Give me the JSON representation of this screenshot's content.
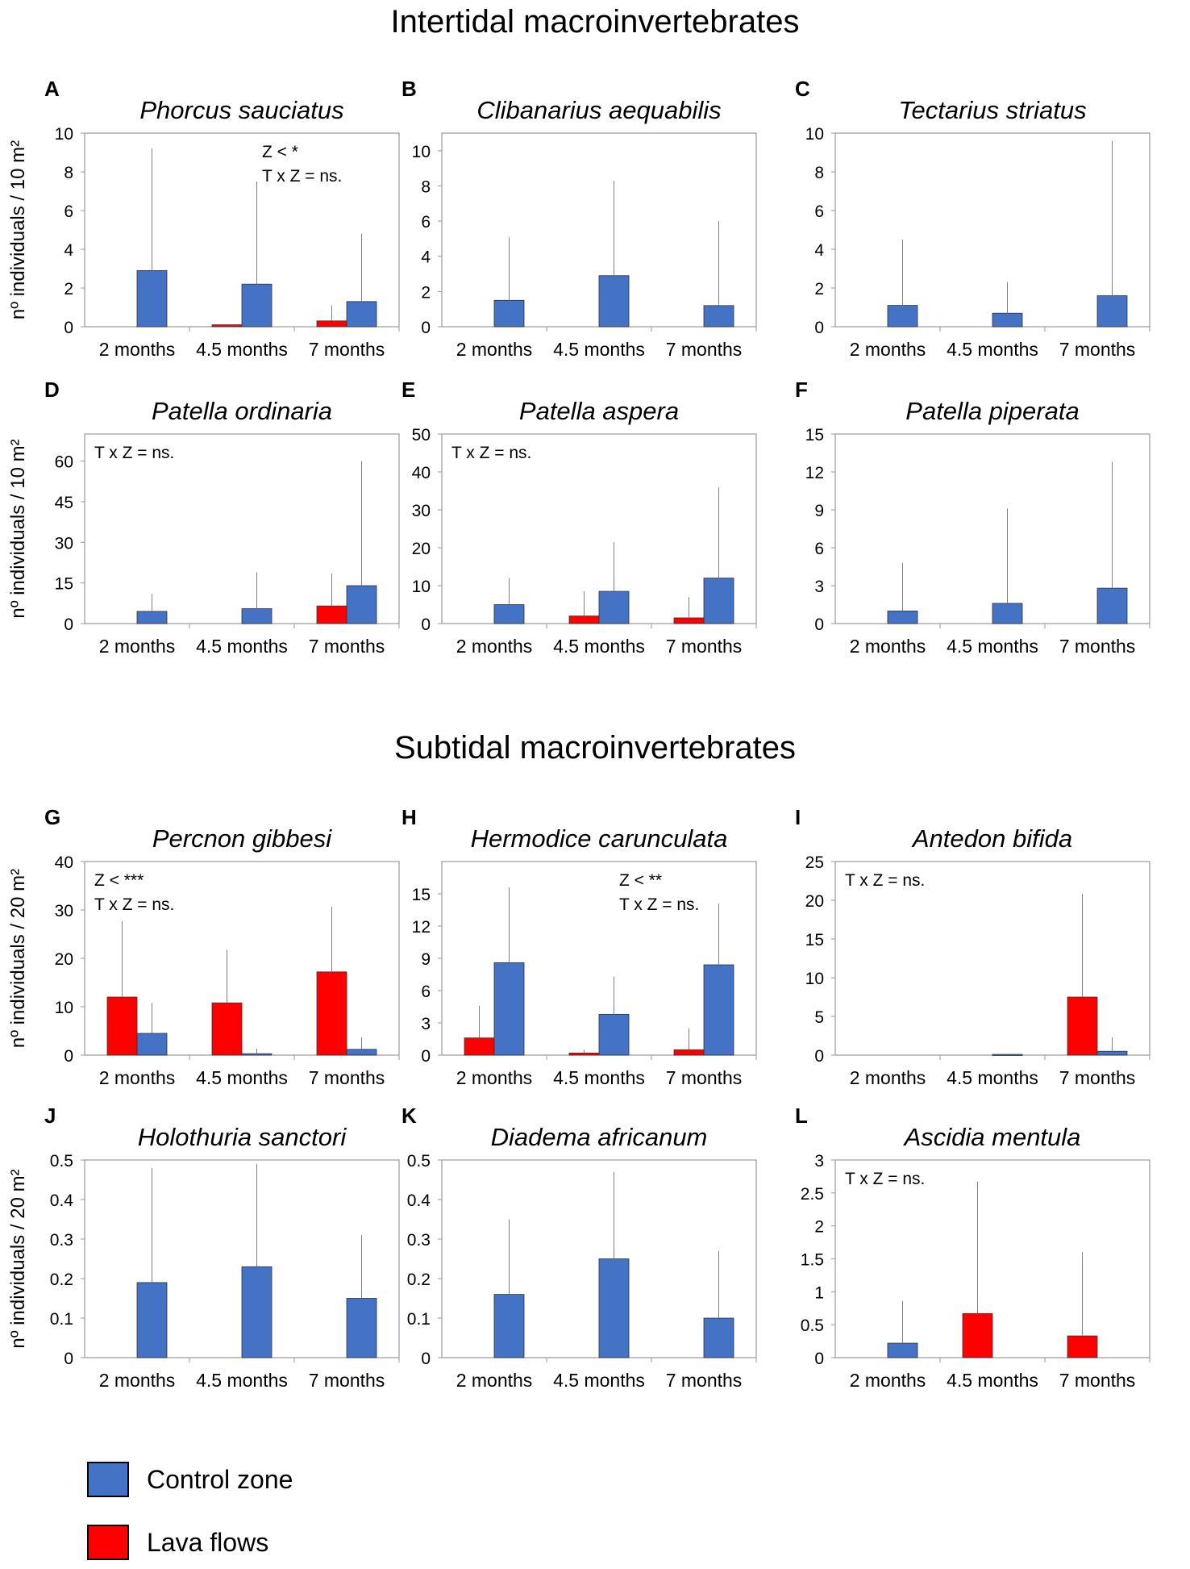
{
  "colors": {
    "control": "#4472C4",
    "lava": "#FF0000",
    "axis": "#999999",
    "error": "#808080",
    "text": "#000000"
  },
  "section_titles": {
    "intertidal": "Intertidal macroinvertebrates",
    "subtidal": "Subtidal macroinvertebrates"
  },
  "legend": [
    {
      "label": "Control zone",
      "color": "#4472C4"
    },
    {
      "label": "Lava flows",
      "color": "#FF0000"
    }
  ],
  "chart_data": [
    {
      "id": "A",
      "type": "bar",
      "title": "Phorcus sauciatus",
      "ylabel": "nº individuals / 10 m²",
      "ylim": [
        0,
        10
      ],
      "yticks": [
        "0",
        "2",
        "4",
        "6",
        "8",
        "10"
      ],
      "categories": [
        "2 months",
        "4.5 months",
        "7 months"
      ],
      "annotations": [
        "Z < *",
        "T x Z = ns."
      ],
      "series": [
        {
          "name": "Lava flows",
          "values": [
            0,
            0.1,
            0.3
          ],
          "error": [
            0,
            0,
            0.8
          ]
        },
        {
          "name": "Control zone",
          "values": [
            2.9,
            2.2,
            1.3
          ],
          "error": [
            6.3,
            5.3,
            3.5
          ]
        }
      ]
    },
    {
      "id": "B",
      "type": "bar",
      "title": "Clibanarius aequabilis",
      "ylabel": "",
      "ylim": [
        0,
        11
      ],
      "yticks": [
        "0",
        "2",
        "4",
        "6",
        "8",
        "10"
      ],
      "categories": [
        "2 months",
        "4.5 months",
        "7 months"
      ],
      "annotations": [],
      "series": [
        {
          "name": "Lava flows",
          "values": [
            0,
            0,
            0
          ],
          "error": [
            0,
            0,
            0
          ]
        },
        {
          "name": "Control zone",
          "values": [
            1.5,
            2.9,
            1.2
          ],
          "error": [
            3.6,
            5.4,
            4.8
          ]
        }
      ]
    },
    {
      "id": "C",
      "type": "bar",
      "title": "Tectarius striatus",
      "ylabel": "",
      "ylim": [
        0,
        10
      ],
      "yticks": [
        "0",
        "2",
        "4",
        "6",
        "8",
        "10"
      ],
      "categories": [
        "2 months",
        "4.5 months",
        "7 months"
      ],
      "annotations": [],
      "series": [
        {
          "name": "Lava flows",
          "values": [
            0,
            0,
            0
          ],
          "error": [
            0,
            0,
            0
          ]
        },
        {
          "name": "Control zone",
          "values": [
            1.1,
            0.7,
            1.6
          ],
          "error": [
            3.4,
            1.6,
            8.0
          ]
        }
      ]
    },
    {
      "id": "D",
      "type": "bar",
      "title": "Patella ordinaria",
      "ylabel": "nº individuals / 10 m²",
      "ylim": [
        0,
        70
      ],
      "yticks": [
        "0",
        "15",
        "30",
        "45",
        "60"
      ],
      "categories": [
        "2 months",
        "4.5 months",
        "7 months"
      ],
      "annotations": [
        "T x Z = ns."
      ],
      "series": [
        {
          "name": "Lava flows",
          "values": [
            0,
            0,
            6.5
          ],
          "error": [
            0,
            0,
            12
          ]
        },
        {
          "name": "Control zone",
          "values": [
            4.5,
            5.5,
            14
          ],
          "error": [
            6.5,
            13.5,
            46
          ]
        }
      ]
    },
    {
      "id": "E",
      "type": "bar",
      "title": "Patella aspera",
      "ylabel": "",
      "ylim": [
        0,
        50
      ],
      "yticks": [
        "0",
        "10",
        "20",
        "30",
        "40",
        "50"
      ],
      "categories": [
        "2 months",
        "4.5 months",
        "7 months"
      ],
      "annotations": [
        "T x Z = ns."
      ],
      "series": [
        {
          "name": "Lava flows",
          "values": [
            0,
            2,
            1.5
          ],
          "error": [
            0,
            6.5,
            5.5
          ]
        },
        {
          "name": "Control zone",
          "values": [
            5,
            8.5,
            12
          ],
          "error": [
            7,
            13,
            24
          ]
        }
      ]
    },
    {
      "id": "F",
      "type": "bar",
      "title": "Patella piperata",
      "ylabel": "",
      "ylim": [
        0,
        15
      ],
      "yticks": [
        "0",
        "3",
        "6",
        "9",
        "12",
        "15"
      ],
      "categories": [
        "2 months",
        "4.5 months",
        "7 months"
      ],
      "annotations": [],
      "series": [
        {
          "name": "Lava flows",
          "values": [
            0,
            0,
            0
          ],
          "error": [
            0,
            0,
            0
          ]
        },
        {
          "name": "Control zone",
          "values": [
            1,
            1.6,
            2.8
          ],
          "error": [
            3.8,
            7.5,
            10
          ]
        }
      ]
    },
    {
      "id": "G",
      "type": "bar",
      "title": "Percnon gibbesi",
      "ylabel": "nº individuals / 20 m²",
      "ylim": [
        0,
        40
      ],
      "yticks": [
        "0",
        "10",
        "20",
        "30",
        "40"
      ],
      "categories": [
        "2 months",
        "4.5 months",
        "7 months"
      ],
      "annotations": [
        "Z < ***",
        "T x Z = ns."
      ],
      "series": [
        {
          "name": "Lava flows",
          "values": [
            12,
            10.8,
            17.2
          ],
          "error": [
            15.7,
            11,
            13.5
          ]
        },
        {
          "name": "Control zone",
          "values": [
            4.5,
            0.3,
            1.2
          ],
          "error": [
            6.3,
            1,
            2.5
          ]
        }
      ]
    },
    {
      "id": "H",
      "type": "bar",
      "title": "Hermodice carunculata",
      "ylabel": "",
      "ylim": [
        0,
        18
      ],
      "yticks": [
        "0",
        "3",
        "6",
        "9",
        "12",
        "15"
      ],
      "categories": [
        "2 months",
        "4.5 months",
        "7 months"
      ],
      "annotations": [
        "Z < **",
        "T x Z = ns."
      ],
      "series": [
        {
          "name": "Lava flows",
          "values": [
            1.6,
            0.2,
            0.5
          ],
          "error": [
            3,
            0.3,
            2
          ]
        },
        {
          "name": "Control zone",
          "values": [
            8.6,
            3.8,
            8.4
          ],
          "error": [
            7,
            3.5,
            5.7
          ]
        }
      ]
    },
    {
      "id": "I",
      "type": "bar",
      "title": "Antedon bifida",
      "ylabel": "",
      "ylim": [
        0,
        25
      ],
      "yticks": [
        "0",
        "5",
        "10",
        "15",
        "20",
        "25"
      ],
      "categories": [
        "2 months",
        "4.5 months",
        "7 months"
      ],
      "annotations": [
        "T x Z = ns."
      ],
      "series": [
        {
          "name": "Lava flows",
          "values": [
            0,
            0,
            7.5
          ],
          "error": [
            0,
            0,
            13.3
          ]
        },
        {
          "name": "Control zone",
          "values": [
            0,
            0.1,
            0.5
          ],
          "error": [
            0,
            0,
            1.8
          ]
        }
      ]
    },
    {
      "id": "J",
      "type": "bar",
      "title": "Holothuria sanctori",
      "ylabel": "nº individuals / 20 m²",
      "ylim": [
        0,
        0.5
      ],
      "yticks": [
        "0",
        "0.1",
        "0.2",
        "0.3",
        "0.4",
        "0.5"
      ],
      "categories": [
        "2 months",
        "4.5 months",
        "7 months"
      ],
      "annotations": [],
      "series": [
        {
          "name": "Lava flows",
          "values": [
            0,
            0,
            0
          ],
          "error": [
            0,
            0,
            0
          ]
        },
        {
          "name": "Control zone",
          "values": [
            0.19,
            0.23,
            0.15
          ],
          "error": [
            0.29,
            0.26,
            0.16
          ]
        }
      ]
    },
    {
      "id": "K",
      "type": "bar",
      "title": "Diadema africanum",
      "ylabel": "",
      "ylim": [
        0,
        0.5
      ],
      "yticks": [
        "0",
        "0.1",
        "0.2",
        "0.3",
        "0.4",
        "0.5"
      ],
      "categories": [
        "2 months",
        "4.5 months",
        "7 months"
      ],
      "annotations": [],
      "series": [
        {
          "name": "Lava flows",
          "values": [
            0,
            0,
            0
          ],
          "error": [
            0,
            0,
            0
          ]
        },
        {
          "name": "Control zone",
          "values": [
            0.16,
            0.25,
            0.1
          ],
          "error": [
            0.19,
            0.22,
            0.17
          ]
        }
      ]
    },
    {
      "id": "L",
      "type": "bar",
      "title": "Ascidia mentula",
      "ylabel": "",
      "ylim": [
        0,
        3
      ],
      "yticks": [
        "0",
        "0.5",
        "1",
        "1.5",
        "2",
        "2.5",
        "3"
      ],
      "categories": [
        "2 months",
        "4.5 months",
        "7 months"
      ],
      "annotations": [
        "T x Z = ns."
      ],
      "series": [
        {
          "name": "Lava flows",
          "values": [
            0,
            0.67,
            0.33
          ],
          "error": [
            0,
            2,
            1.27
          ]
        },
        {
          "name": "Control zone",
          "values": [
            0.22,
            0,
            0
          ],
          "error": [
            0.64,
            0,
            0
          ]
        }
      ]
    }
  ]
}
